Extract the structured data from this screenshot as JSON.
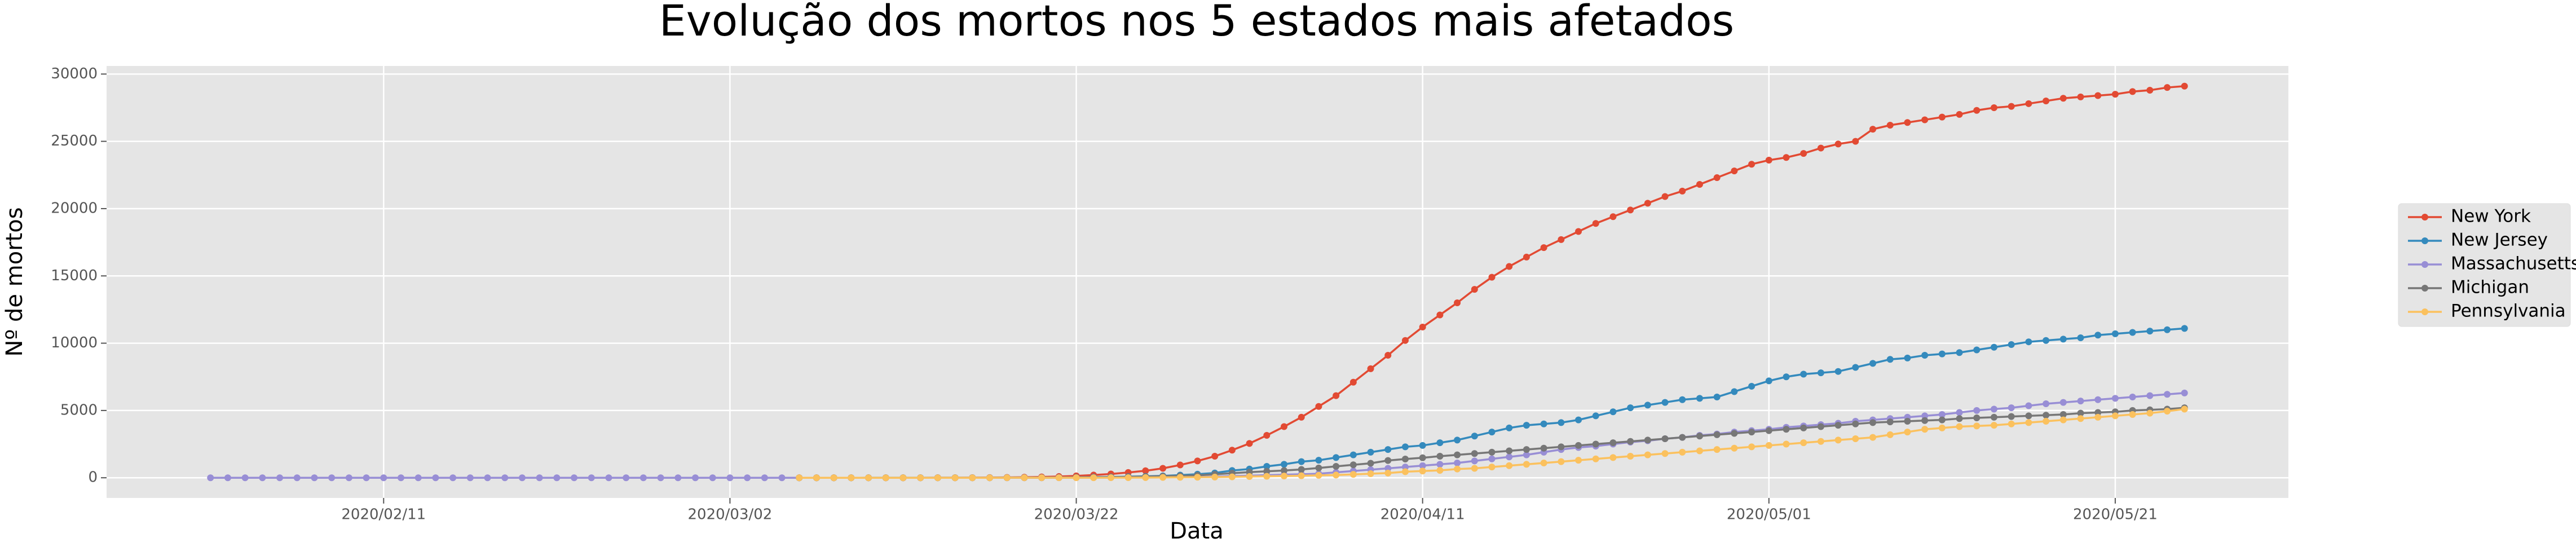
{
  "chart_data": {
    "type": "line",
    "title": "Evolução dos mortos nos 5 estados mais afetados",
    "xlabel": "Data",
    "ylabel": "Nº de mortos",
    "x": [
      "2020/02/01",
      "2020/02/02",
      "2020/02/03",
      "2020/02/04",
      "2020/02/05",
      "2020/02/06",
      "2020/02/07",
      "2020/02/08",
      "2020/02/09",
      "2020/02/10",
      "2020/02/11",
      "2020/02/12",
      "2020/02/13",
      "2020/02/14",
      "2020/02/15",
      "2020/02/16",
      "2020/02/17",
      "2020/02/18",
      "2020/02/19",
      "2020/02/20",
      "2020/02/21",
      "2020/02/22",
      "2020/02/23",
      "2020/02/24",
      "2020/02/25",
      "2020/02/26",
      "2020/02/27",
      "2020/02/28",
      "2020/02/29",
      "2020/03/01",
      "2020/03/02",
      "2020/03/03",
      "2020/03/04",
      "2020/03/05",
      "2020/03/06",
      "2020/03/07",
      "2020/03/08",
      "2020/03/09",
      "2020/03/10",
      "2020/03/11",
      "2020/03/12",
      "2020/03/13",
      "2020/03/14",
      "2020/03/15",
      "2020/03/16",
      "2020/03/17",
      "2020/03/18",
      "2020/03/19",
      "2020/03/20",
      "2020/03/21",
      "2020/03/22",
      "2020/03/23",
      "2020/03/24",
      "2020/03/25",
      "2020/03/26",
      "2020/03/27",
      "2020/03/28",
      "2020/03/29",
      "2020/03/30",
      "2020/03/31",
      "2020/04/01",
      "2020/04/02",
      "2020/04/03",
      "2020/04/04",
      "2020/04/05",
      "2020/04/06",
      "2020/04/07",
      "2020/04/08",
      "2020/04/09",
      "2020/04/10",
      "2020/04/11",
      "2020/04/12",
      "2020/04/13",
      "2020/04/14",
      "2020/04/15",
      "2020/04/16",
      "2020/04/17",
      "2020/04/18",
      "2020/04/19",
      "2020/04/20",
      "2020/04/21",
      "2020/04/22",
      "2020/04/23",
      "2020/04/24",
      "2020/04/25",
      "2020/04/26",
      "2020/04/27",
      "2020/04/28",
      "2020/04/29",
      "2020/04/30",
      "2020/05/01",
      "2020/05/02",
      "2020/05/03",
      "2020/05/04",
      "2020/05/05",
      "2020/05/06",
      "2020/05/07",
      "2020/05/08",
      "2020/05/09",
      "2020/05/10",
      "2020/05/11",
      "2020/05/12",
      "2020/05/13",
      "2020/05/14",
      "2020/05/15",
      "2020/05/16",
      "2020/05/17",
      "2020/05/18",
      "2020/05/19",
      "2020/05/20",
      "2020/05/21",
      "2020/05/22",
      "2020/05/23",
      "2020/05/24",
      "2020/05/25"
    ],
    "series": [
      {
        "name": "New York",
        "color": "#E24A33",
        "values": [
          null,
          null,
          null,
          null,
          null,
          null,
          null,
          null,
          null,
          null,
          null,
          null,
          null,
          null,
          null,
          null,
          null,
          null,
          null,
          null,
          null,
          null,
          null,
          null,
          null,
          null,
          null,
          null,
          null,
          null,
          null,
          null,
          null,
          null,
          0,
          0,
          0,
          0,
          0,
          0,
          0,
          0,
          2,
          5,
          10,
          15,
          25,
          40,
          60,
          90,
          140,
          200,
          280,
          390,
          520,
          700,
          950,
          1250,
          1600,
          2050,
          2550,
          3150,
          3800,
          4500,
          5300,
          6100,
          7100,
          8100,
          9100,
          10200,
          11200,
          12100,
          13000,
          14000,
          14900,
          15700,
          16400,
          17100,
          17700,
          18300,
          18900,
          19400,
          19900,
          20400,
          20900,
          21300,
          21800,
          22300,
          22800,
          23300,
          23600,
          23800,
          24100,
          24500,
          24800,
          25000,
          25900,
          26200,
          26400,
          26600,
          26800,
          27000,
          27300,
          27500,
          27600,
          27800,
          28000,
          28200,
          28300,
          28400,
          28500,
          28700,
          28800,
          29000,
          29100
        ]
      },
      {
        "name": "New Jersey",
        "color": "#348ABD",
        "values": [
          null,
          null,
          null,
          null,
          null,
          null,
          null,
          null,
          null,
          null,
          null,
          null,
          null,
          null,
          null,
          null,
          null,
          null,
          null,
          null,
          null,
          null,
          null,
          null,
          null,
          null,
          null,
          null,
          null,
          null,
          null,
          null,
          null,
          null,
          0,
          0,
          0,
          0,
          1,
          1,
          1,
          2,
          2,
          3,
          5,
          5,
          9,
          11,
          16,
          20,
          27,
          44,
          62,
          81,
          108,
          140,
          198,
          267,
          356,
          537,
          646,
          846,
          1000,
          1200,
          1300,
          1500,
          1700,
          1900,
          2100,
          2300,
          2400,
          2600,
          2800,
          3100,
          3400,
          3700,
          3900,
          4000,
          4100,
          4300,
          4600,
          4900,
          5200,
          5400,
          5600,
          5800,
          5900,
          6000,
          6400,
          6800,
          7200,
          7500,
          7700,
          7800,
          7900,
          8200,
          8500,
          8800,
          8900,
          9100,
          9200,
          9300,
          9500,
          9700,
          9900,
          10100,
          10200,
          10300,
          10400,
          10600,
          10700,
          10800,
          10900,
          11000,
          11100
        ]
      },
      {
        "name": "Massachusetts",
        "color": "#988ED5",
        "values": [
          0,
          0,
          0,
          0,
          0,
          0,
          0,
          0,
          0,
          0,
          0,
          0,
          0,
          0,
          0,
          0,
          0,
          0,
          0,
          0,
          0,
          0,
          0,
          0,
          0,
          0,
          0,
          0,
          0,
          0,
          0,
          0,
          0,
          0,
          0,
          0,
          0,
          0,
          0,
          0,
          0,
          0,
          0,
          0,
          0,
          0,
          0,
          0,
          0,
          5,
          9,
          11,
          15,
          25,
          35,
          44,
          48,
          56,
          89,
          122,
          154,
          192,
          231,
          260,
          300,
          400,
          500,
          600,
          700,
          800,
          900,
          1000,
          1100,
          1250,
          1400,
          1550,
          1700,
          1900,
          2100,
          2250,
          2350,
          2500,
          2650,
          2750,
          2900,
          3000,
          3150,
          3250,
          3400,
          3500,
          3600,
          3750,
          3850,
          3950,
          4050,
          4200,
          4300,
          4400,
          4500,
          4600,
          4700,
          4850,
          5000,
          5100,
          5200,
          5350,
          5500,
          5600,
          5700,
          5800,
          5900,
          6000,
          6100,
          6200,
          6300
        ]
      },
      {
        "name": "Michigan",
        "color": "#777777",
        "values": [
          null,
          null,
          null,
          null,
          null,
          null,
          null,
          null,
          null,
          null,
          null,
          null,
          null,
          null,
          null,
          null,
          null,
          null,
          null,
          null,
          null,
          null,
          null,
          null,
          null,
          null,
          null,
          null,
          null,
          null,
          null,
          null,
          null,
          null,
          0,
          0,
          0,
          0,
          0,
          0,
          0,
          0,
          0,
          0,
          0,
          0,
          1,
          3,
          5,
          10,
          15,
          24,
          43,
          60,
          92,
          111,
          132,
          184,
          259,
          337,
          417,
          479,
          540,
          617,
          727,
          845,
          960,
          1076,
          1281,
          1392,
          1487,
          1602,
          1700,
          1800,
          1900,
          2000,
          2100,
          2200,
          2300,
          2400,
          2500,
          2600,
          2700,
          2800,
          2900,
          3000,
          3100,
          3200,
          3300,
          3400,
          3500,
          3600,
          3700,
          3800,
          3900,
          4000,
          4100,
          4150,
          4200,
          4250,
          4300,
          4400,
          4450,
          4500,
          4550,
          4600,
          4650,
          4700,
          4800,
          4850,
          4900,
          5000,
          5050,
          5100,
          5200
        ]
      },
      {
        "name": "Pennsylvania",
        "color": "#FBC15E",
        "values": [
          null,
          null,
          null,
          null,
          null,
          null,
          null,
          null,
          null,
          null,
          null,
          null,
          null,
          null,
          null,
          null,
          null,
          null,
          null,
          null,
          null,
          null,
          null,
          null,
          null,
          null,
          null,
          null,
          null,
          null,
          null,
          null,
          null,
          null,
          0,
          0,
          0,
          0,
          0,
          0,
          0,
          0,
          0,
          0,
          0,
          0,
          1,
          1,
          2,
          3,
          3,
          5,
          7,
          9,
          13,
          22,
          37,
          40,
          50,
          67,
          90,
          110,
          130,
          150,
          180,
          200,
          250,
          300,
          350,
          450,
          500,
          550,
          650,
          700,
          800,
          900,
          1000,
          1100,
          1200,
          1300,
          1400,
          1500,
          1600,
          1700,
          1800,
          1900,
          2000,
          2100,
          2200,
          2300,
          2400,
          2500,
          2600,
          2700,
          2800,
          2900,
          3000,
          3200,
          3400,
          3600,
          3700,
          3800,
          3850,
          3900,
          4000,
          4100,
          4200,
          4300,
          4400,
          4500,
          4600,
          4700,
          4800,
          4950,
          5100
        ]
      }
    ],
    "xlim": [
      "2020/01/26",
      "2020/05/31"
    ],
    "xticks": [
      "2020/02/11",
      "2020/03/02",
      "2020/03/22",
      "2020/04/11",
      "2020/05/01",
      "2020/05/21"
    ],
    "ylim": [
      -1500,
      30600
    ],
    "yticks": [
      0,
      5000,
      10000,
      15000,
      20000,
      25000,
      30000
    ],
    "grid": true,
    "legend": "right"
  }
}
